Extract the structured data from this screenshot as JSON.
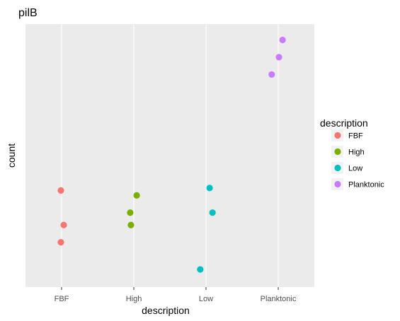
{
  "chart_data": {
    "type": "scatter",
    "title": "pilB",
    "xlabel": "description",
    "ylabel": "count",
    "categories": [
      "FBF",
      "High",
      "Low",
      "Planktonic"
    ],
    "ylim": [
      0,
      100
    ],
    "grid": true,
    "y_ticks_shown": false,
    "legend": {
      "title": "description",
      "placement": "right"
    },
    "series": [
      {
        "name": "FBF",
        "color": "#F8766D",
        "points": [
          {
            "x": -0.01,
            "y": 36
          },
          {
            "x": 0.03,
            "y": 22
          },
          {
            "x": -0.01,
            "y": 15
          }
        ]
      },
      {
        "name": "High",
        "color": "#7CAE00",
        "points": [
          {
            "x": 0.04,
            "y": 34
          },
          {
            "x": -0.05,
            "y": 27
          },
          {
            "x": -0.04,
            "y": 22
          }
        ]
      },
      {
        "name": "Low",
        "color": "#00BFC4",
        "points": [
          {
            "x": 0.05,
            "y": 37
          },
          {
            "x": 0.09,
            "y": 27
          },
          {
            "x": -0.08,
            "y": 4
          }
        ]
      },
      {
        "name": "Planktonic",
        "color": "#C77CFF",
        "points": [
          {
            "x": 0.06,
            "y": 97
          },
          {
            "x": 0.01,
            "y": 90
          },
          {
            "x": -0.09,
            "y": 83
          }
        ]
      }
    ]
  }
}
